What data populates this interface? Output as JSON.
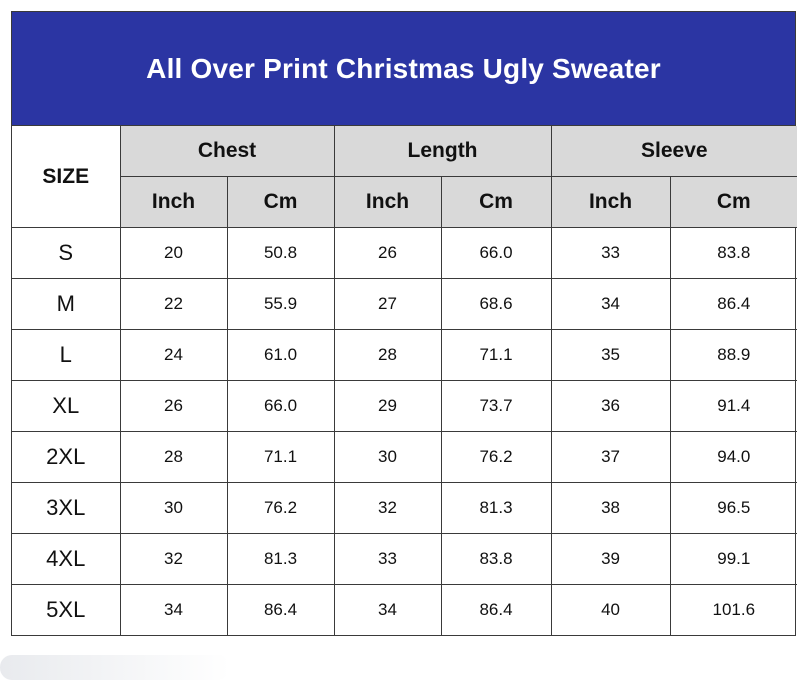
{
  "title": "All Over Print Christmas Ugly Sweater",
  "header": {
    "size_label": "SIZE",
    "groups": [
      "Chest",
      "Length",
      "Sleeve"
    ],
    "units": [
      "Inch",
      "Cm",
      "Inch",
      "Cm",
      "Inch",
      "Cm"
    ]
  },
  "rows": [
    {
      "size": "S",
      "values": [
        "20",
        "50.8",
        "26",
        "66.0",
        "33",
        "83.8"
      ]
    },
    {
      "size": "M",
      "values": [
        "22",
        "55.9",
        "27",
        "68.6",
        "34",
        "86.4"
      ]
    },
    {
      "size": "L",
      "values": [
        "24",
        "61.0",
        "28",
        "71.1",
        "35",
        "88.9"
      ]
    },
    {
      "size": "XL",
      "values": [
        "26",
        "66.0",
        "29",
        "73.7",
        "36",
        "91.4"
      ]
    },
    {
      "size": "2XL",
      "values": [
        "28",
        "71.1",
        "30",
        "76.2",
        "37",
        "94.0"
      ]
    },
    {
      "size": "3XL",
      "values": [
        "30",
        "76.2",
        "32",
        "81.3",
        "38",
        "96.5"
      ]
    },
    {
      "size": "4XL",
      "values": [
        "32",
        "81.3",
        "33",
        "83.8",
        "39",
        "99.1"
      ]
    },
    {
      "size": "5XL",
      "values": [
        "34",
        "86.4",
        "34",
        "86.4",
        "40",
        "101.6"
      ]
    }
  ],
  "colors": {
    "title_bg": "#2b35a3",
    "header_bg": "#d9d9d9",
    "border": "#3a3a3a"
  }
}
